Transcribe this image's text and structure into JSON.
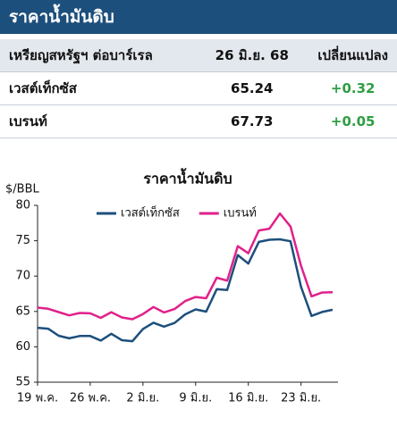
{
  "header": {
    "title": "ราคาน้ำมันดิบ"
  },
  "table": {
    "columns": [
      "เหรียญสหรัฐฯ ต่อบาร์เรล",
      "26 มิ.ย. 68",
      "เปลี่ยนแปลง"
    ],
    "rows": [
      [
        "เวสต์เท็กซัส",
        "65.24",
        "+0.32"
      ],
      [
        "เบรนท์",
        "67.73",
        "+0.05"
      ]
    ]
  },
  "chart_data": {
    "type": "line",
    "title": "ราคาน้ำมันดิบ",
    "y_label": "$/BBL",
    "categories": [
      "19 พ.ค.",
      null,
      null,
      null,
      null,
      "26 พ.ค.",
      null,
      null,
      null,
      null,
      "2 มิ.ย.",
      null,
      null,
      null,
      null,
      "9 มิ.ย.",
      null,
      null,
      null,
      null,
      "16 มิ.ย.",
      null,
      null,
      null,
      null,
      "23 มิ.ย.",
      null,
      null,
      null
    ],
    "series": [
      {
        "name": "เวสต์เท็กซัส",
        "color": "#1d4f7c",
        "values": [
          62.69,
          62.56,
          61.57,
          61.2,
          61.53,
          61.53,
          60.89,
          61.84,
          60.94,
          60.79,
          62.52,
          63.41,
          62.85,
          63.37,
          64.58,
          65.29,
          64.98,
          68.15,
          68.04,
          72.98,
          71.77,
          74.84,
          75.14,
          75.2,
          74.93,
          68.51,
          64.37,
          64.92,
          65.24
        ]
      },
      {
        "name": "เบรนท์",
        "color": "#e0218a",
        "values": [
          65.54,
          65.38,
          64.91,
          64.44,
          64.78,
          64.74,
          64.09,
          64.9,
          64.15,
          63.9,
          64.63,
          65.63,
          64.86,
          65.34,
          66.47,
          67.04,
          66.87,
          69.77,
          69.36,
          74.23,
          73.23,
          76.45,
          76.7,
          78.85,
          77.01,
          71.48,
          67.14,
          67.68,
          67.73
        ]
      }
    ],
    "ylim": [
      55,
      80
    ],
    "yticks": [
      55,
      60,
      65,
      70,
      75,
      80
    ],
    "grid": false,
    "legend": "top"
  }
}
